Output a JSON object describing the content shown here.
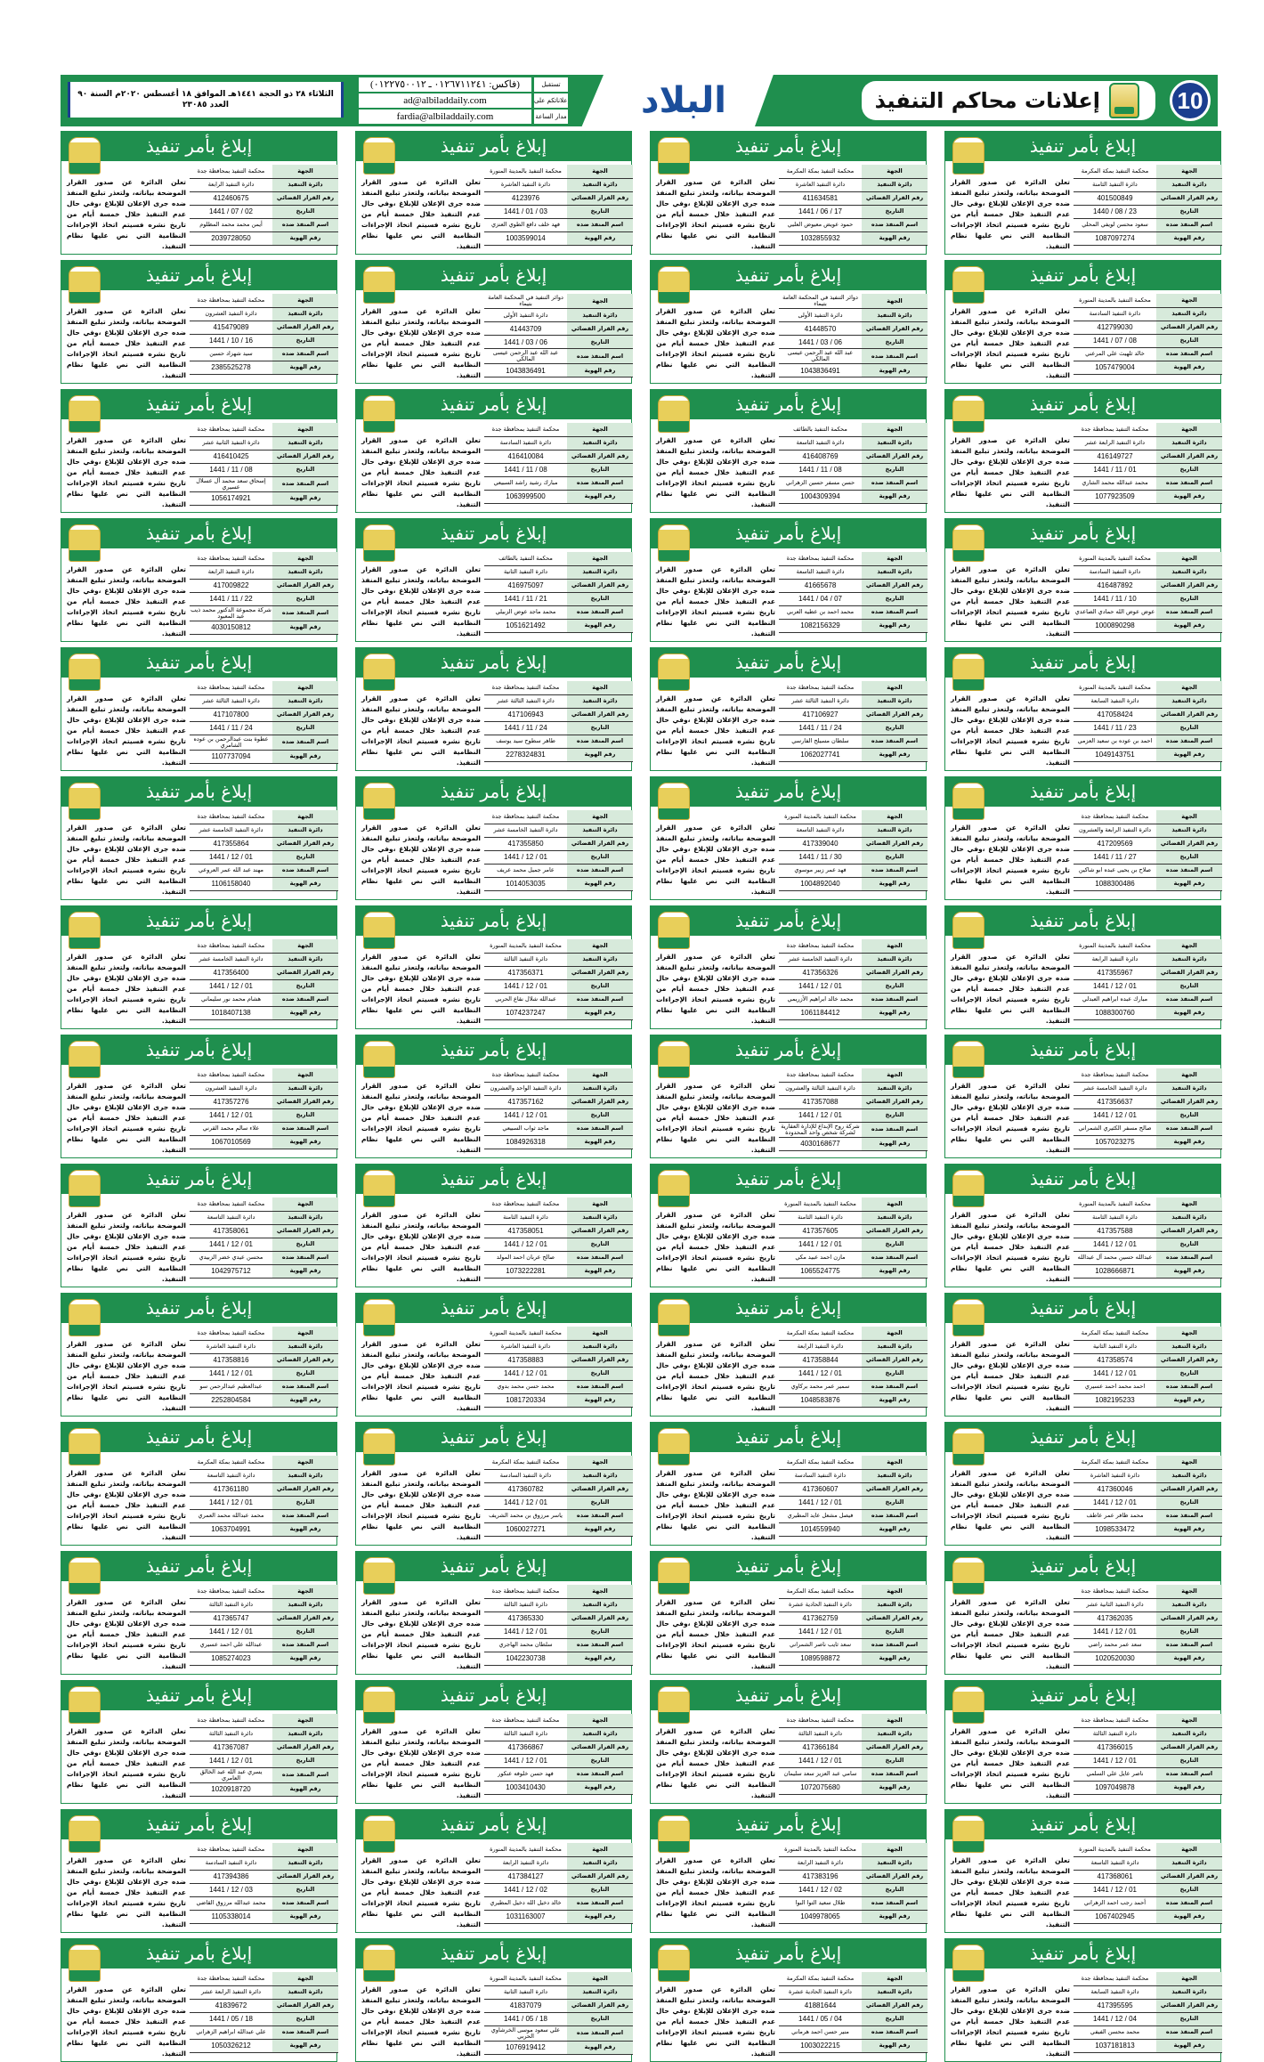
{
  "header": {
    "page_number": "10",
    "section_title": "إعلانات محاكم التنفيذ",
    "logo_text": "البلاد",
    "contact": [
      {
        "label": "تستقبل",
        "value": "(فاكس: ٠١٢٦٧١١٢٤١ ـ ٠١٢٢٧٥٠٠١٢)"
      },
      {
        "label": "إعلاناتكم على",
        "value": "ad@albiladdaily.com"
      },
      {
        "label": "مدار الساعة",
        "value": "fardia@albiladdaily.com"
      }
    ],
    "dateline": "الثلاثاء ٢٨ ذو الحجة ١٤٤١هـ الموافق ١٨ أغسطس ٢٠٢٠م السنة ٩٠ العدد ٢٣٠٨٥"
  },
  "colors": {
    "green": "#1f8f4e",
    "label_bg": "#d7eadb",
    "blue": "#1b3e8f"
  },
  "notice_title": "إبلاغ بأمر تنفيذ",
  "notice_body": "تعلن الدائرة عن صدور القرار الموضحة بياناته، ولتعذر تبليغ المنفذ ضده جرى الإعلان للإبلاغ ،وفي حال عدم التنفيذ خلال خمسة أيام من تاريخ نشره فسيتم اتخاذ الإجراءات النظامية التي نص عليها نظام التنفيذ.",
  "labels": [
    "الجهة",
    "دائرة التنفيذ",
    "رقم القرار القضائي",
    "التاريخ",
    "اسم المنفذ ضده",
    "رقم الهوية"
  ],
  "notices": [
    [
      "محكمة التنفيذ بمكة المكرمة",
      "دائرة التنفيذ الثامنة",
      "401500849",
      "23 / 08 / 1440",
      "سعود محسن لويفي المحلي",
      "1087097274"
    ],
    [
      "محكمة التنفيذ بمكة المكرمة",
      "دائرة التنفيذ العاشرة",
      "411634581",
      "17 / 06 / 1441",
      "حمود عويض معيوض العليي",
      "1032855932"
    ],
    [
      "محكمة التنفيذ بالمدينة المنورة",
      "دائرة التنفيذ العاشرة",
      "4123976",
      "03 / 01 / 1441",
      "فهد خلف دافع الطوي العنزي",
      "1003599014"
    ],
    [
      "محكمة التنفيذ بمحافظة جدة",
      "دائرة التنفيذ الرابعة",
      "412460675",
      "02 / 07 / 1441",
      "أيمن محمد محمد المظلوم",
      "2039728050"
    ],
    [
      "محكمة التنفيذ بالمدينة المنورة",
      "دائرة التنفيذ السادسة",
      "412799030",
      "08 / 07 / 1441",
      "خالد ثلهيث علي المرعني",
      "1057479004"
    ],
    [
      "دوائر التنفيذ في المحكمة العامة بتيماء",
      "دائرة التنفيذ الأولى",
      "41448570",
      "06 / 03 / 1441",
      "عبد الله عبد الرحمن عيسى المالكي",
      "1043836491"
    ],
    [
      "دوائر التنفيذ في المحكمة العامة بتيماء",
      "دائرة التنفيذ الأولى",
      "41443709",
      "06 / 03 / 1441",
      "عبد الله عبد الرحمن عيسى المالكي",
      "1043836491"
    ],
    [
      "محكمة التنفيذ بمحافظة جدة",
      "دائرة التنفيذ العشرون",
      "415479089",
      "16 / 10 / 1441",
      "سيد شهزاد حسين",
      "2385525278"
    ],
    [
      "محكمة التنفيذ بمحافظة جدة",
      "دائرة التنفيذ الرابعة عشر",
      "416149727",
      "01 / 11 / 1441",
      "محمد عبدالله محمد الشاري",
      "1077923509"
    ],
    [
      "محكمة التنفيذ بالطائف",
      "دائرة التنفيذ التاسعة",
      "416408769",
      "08 / 11 / 1441",
      "حسن مسفر حسين الزهراني",
      "1004309394"
    ],
    [
      "محكمة التنفيذ بمحافظة جدة",
      "دائرة التنفيذ السادسة",
      "416410084",
      "08 / 11 / 1441",
      "مبارك رشيد راشد السبيعي",
      "1063999500"
    ],
    [
      "محكمة التنفيذ بمحافظة جدة",
      "دائرة التنفيذ الثانية عشر",
      "416410425",
      "08 / 11 / 1441",
      "إسحاق سعد محمد آل عسلال عسيري",
      "1056174921"
    ],
    [
      "محكمة التنفيذ بالمدينة المنورة",
      "دائرة التنفيذ السادسة",
      "416487892",
      "10 / 11 / 1441",
      "عوض عوض الله حمادي الصاعدي",
      "1000890298"
    ],
    [
      "محكمة التنفيذ بمحافظة جدة",
      "دائرة التنفيذ التاسعة",
      "41665678",
      "07 / 04 / 1441",
      "محمد احمد بن عطيه العربي",
      "1082156329"
    ],
    [
      "محكمة التنفيذ بالطائف",
      "دائرة التنفيذ الثانية",
      "416975097",
      "21 / 11 / 1441",
      "محمد ماجد عوض الزبيلي",
      "1051621492"
    ],
    [
      "محكمة التنفيذ بمحافظة جدة",
      "دائرة التنفيذ الرابعة",
      "417009822",
      "22 / 11 / 1441",
      "شركة مجموعة الدكتور محمد ذيب عبد المعبود",
      "4030150812"
    ],
    [
      "محكمة التنفيذ بالمدينة المنورة",
      "دائرة التنفيذ السابعة",
      "417058424",
      "23 / 11 / 1441",
      "احمد بن عوده بن سعيد العزمي",
      "1049143751"
    ],
    [
      "محكمة التنفيذ بمحافظة جدة",
      "دائرة التنفيذ الثالثة عشر",
      "417106927",
      "24 / 11 / 1441",
      "سلطان مسيلح الفارسي",
      "1062027741"
    ],
    [
      "محكمة التنفيذ بمحافظة جدة",
      "دائرة التنفيذ الثالثة عشر",
      "417106943",
      "24 / 11 / 1441",
      "طاهر سطوح سيد يوسف",
      "2278324831"
    ],
    [
      "محكمة التنفيذ بمحافظة جدة",
      "دائرة التنفيذ الثالثة عشر",
      "417107800",
      "24 / 11 / 1441",
      "عطوة بنت عبدالرحمن بن عوده الشامري",
      "1107737094"
    ],
    [
      "محكمة التنفيذ بمحافظة جدة",
      "دائرة التنفيذ الرابعة والعشرون",
      "417209569",
      "27 / 11 / 1441",
      "صلاح بن يحيى عبده ابو شاكين",
      "1088300486"
    ],
    [
      "محكمة التنفيذ بالمدينة المنورة",
      "دائرة التنفيذ التاسعة",
      "417339040",
      "30 / 11 / 1441",
      "فهد عمر زبير موسوي",
      "1004892040"
    ],
    [
      "محكمة التنفيذ بمحافظة جدة",
      "دائرة التنفيذ الخامسة عشر",
      "417355850",
      "01 / 12 / 1441",
      "عامر جميل محمد عريف",
      "1014053035"
    ],
    [
      "محكمة التنفيذ بمحافظة جدة",
      "دائرة التنفيذ الخامسة عشر",
      "417355864",
      "01 / 12 / 1441",
      "مهند عبد الله عمر العروعي",
      "1106158040"
    ],
    [
      "محكمة التنفيذ بالمدينة المنورة",
      "دائرة التنفيذ الرابعة",
      "417355967",
      "01 / 12 / 1441",
      "مبارك عبده ابراهيم العبدلي",
      "1088300760"
    ],
    [
      "محكمة التنفيذ بمحافظة جدة",
      "دائرة التنفيذ الخامسة عشر",
      "417356326",
      "01 / 12 / 1441",
      "محمد خالد ابراهيم الأزريمي",
      "1061184412"
    ],
    [
      "محكمة التنفيذ بالمدينة المنورة",
      "دائرة التنفيذ الثالثة",
      "417356371",
      "01 / 12 / 1441",
      "عبدالله شلال نقاع الحربي",
      "1074237247"
    ],
    [
      "محكمة التنفيذ بمحافظة جدة",
      "دائرة التنفيذ الخامسة عشر",
      "417356400",
      "01 / 12 / 1441",
      "هشام محمد نور سليماني",
      "1018407138"
    ],
    [
      "محكمة التنفيذ بمحافظة جدة",
      "دائرة التنفيذ الخامسة عشر",
      "417356637",
      "01 / 12 / 1441",
      "صالح مسفر الكثيري الشمراني",
      "1057023275"
    ],
    [
      "محكمة التنفيذ بمحافظة جدة",
      "دائرة التنفيذ الثالثة والعشرون",
      "417357088",
      "01 / 12 / 1441",
      "شركة روح الإبداع للإدارة العقارية لشركة شخص واحد المحدودة",
      "4030168677"
    ],
    [
      "محكمة التنفيذ بمحافظة جدة",
      "دائرة التنفيذ الواحد والعشرون",
      "417357162",
      "01 / 12 / 1441",
      "ماجد ثواب السبيعي",
      "1084926318"
    ],
    [
      "محكمة التنفيذ بمحافظة جدة",
      "دائرة التنفيذ العشرون",
      "417357276",
      "01 / 12 / 1441",
      "علاء سالم محمد القرني",
      "1067010569"
    ],
    [
      "محكمة التنفيذ بالمدينة المنورة",
      "دائرة التنفيذ الثامنة",
      "417357588",
      "01 / 12 / 1441",
      "عبدالله حسين محمد آل عبدالله",
      "1028666871"
    ],
    [
      "محكمة التنفيذ بالمدينة المنورة",
      "دائرة التنفيذ الثامنة",
      "417357605",
      "01 / 12 / 1441",
      "مازن احمد عبيد مكي",
      "1065524775"
    ],
    [
      "محكمة التنفيذ بمحافظة جدة",
      "دائرة التنفيذ الثامنة",
      "417358051",
      "01 / 12 / 1441",
      "صالح عربان احمد المولد",
      "1073222281"
    ],
    [
      "محكمة التنفيذ بمحافظة جدة",
      "دائرة التنفيذ التاسعة",
      "417358061",
      "01 / 12 / 1441",
      "محسن عيدي خضر الزبيدي",
      "1042975712"
    ],
    [
      "محكمة التنفيذ بمكة المكرمة",
      "دائرة التنفيذ الثانية",
      "417358574",
      "01 / 12 / 1441",
      "احمد محمد احمد عسيري",
      "1082195233"
    ],
    [
      "محكمة التنفيذ بمكة المكرمة",
      "دائرة التنفيذ الرابعة",
      "417358844",
      "01 / 12 / 1441",
      "سمير عمر محمد بركاوي",
      "1048583876"
    ],
    [
      "محكمة التنفيذ بالمدينة المنورة",
      "دائرة التنفيذ العاشرة",
      "417358883",
      "01 / 12 / 1441",
      "محمد حسن محمد بدوي",
      "1081720334"
    ],
    [
      "محكمة التنفيذ بمحافظة جدة",
      "دائرة التنفيذ العاشرة",
      "417358816",
      "01 / 12 / 1441",
      "عبدالعظيم عبدالرحمن سو",
      "2252804584"
    ],
    [
      "محكمة التنفيذ بمكة المكرمة",
      "دائرة التنفيذ العاشرة",
      "417360046",
      "01 / 12 / 1441",
      "محمد ظافر عمر عاطف",
      "1098533472"
    ],
    [
      "محكمة التنفيذ بمكة المكرمة",
      "دائرة التنفيذ السادسة",
      "417360607",
      "01 / 12 / 1441",
      "فيصل مشعل عايد المطيري",
      "1014559940"
    ],
    [
      "محكمة التنفيذ بمكة المكرمة",
      "دائرة التنفيذ السادسة",
      "417360782",
      "01 / 12 / 1441",
      "ياسر مرزوق بن محمد الشريف",
      "1060027271"
    ],
    [
      "محكمة التنفيذ بمكة المكرمة",
      "دائرة التنفيذ التاسعة",
      "417361180",
      "01 / 12 / 1441",
      "محمد عبدالله محمد العمري",
      "1063704991"
    ],
    [
      "محكمة التنفيذ بمحافظة جدة",
      "دائرة التنفيذ الثانية عشر",
      "417362035",
      "01 / 12 / 1441",
      "سعد عمر محمد راضي",
      "1020520030"
    ],
    [
      "محكمة التنفيذ بمكة المكرمة",
      "دائرة التنفيذ الحادية عشرة",
      "417362759",
      "01 / 12 / 1441",
      "سعد ثايب ناصر الشمراني",
      "1089598872"
    ],
    [
      "محكمة التنفيذ بمحافظة جدة",
      "دائرة التنفيذ الثالثة",
      "417365330",
      "01 / 12 / 1441",
      "سلطان محمد الهاجري",
      "1042230738"
    ],
    [
      "محكمة التنفيذ بمحافظة جدة",
      "دائرة التنفيذ الثالثة",
      "417365747",
      "01 / 12 / 1441",
      "عبدالله علي احمد عسيري",
      "1085274023"
    ],
    [
      "محكمة التنفيذ بمحافظة جدة",
      "دائرة التنفيذ الثالثة",
      "417366015",
      "01 / 12 / 1441",
      "ناصر عايل علي السلمي",
      "1097049878"
    ],
    [
      "محكمة التنفيذ بمحافظة جدة",
      "دائرة التنفيذ الثالثة",
      "417366184",
      "01 / 12 / 1441",
      "سامي عبد العزيز سعد سليمان",
      "1072075680"
    ],
    [
      "محكمة التنفيذ بمحافظة جدة",
      "دائرة التنفيذ الثالثة",
      "417366867",
      "01 / 12 / 1441",
      "فهد حسن خلوفه عنكور",
      "1003410430"
    ],
    [
      "محكمة التنفيذ بمحافظة جدة",
      "دائرة التنفيذ الثالثة",
      "417367087",
      "01 / 12 / 1441",
      "يسري عبد الله عبد الخالق العامري",
      "1020918720"
    ],
    [
      "محكمة التنفيذ بالمدينة المنورة",
      "دائرة التنفيذ التاسعة",
      "417368061",
      "01 / 12 / 1441",
      "أحمد رجب احمد الزهراني",
      "1067402945"
    ],
    [
      "محكمة التنفيذ بالمدينة المنورة",
      "دائرة التنفيذ الرابعة",
      "417383196",
      "02 / 12 / 1441",
      "طلال سعيد التوا البوا",
      "1049978065"
    ],
    [
      "محكمة التنفيذ بالمدينة المنورة",
      "دائرة التنفيذ الرابعة",
      "417384127",
      "02 / 12 / 1441",
      "خالد دخيل الله دخيل المطيري",
      "1031163007"
    ],
    [
      "محكمة التنفيذ بمحافظة جدة",
      "دائرة التنفيذ السادسة",
      "417394386",
      "03 / 12 / 1441",
      "محمد عبدالله مرزوق القاضي",
      "1105338014"
    ],
    [
      "محكمة التنفيذ بمحافظة جدة",
      "دائرة التنفيذ السابعة",
      "417395595",
      "04 / 12 / 1441",
      "محمد محسن الفيفي",
      "1037181813"
    ],
    [
      "محكمة التنفيذ بمكة المكرمة",
      "دائرة التنفيذ الحادية عشرة",
      "41881644",
      "04 / 05 / 1441",
      "منير حسن احمد هرماني",
      "1003022215"
    ],
    [
      "محكمة التنفيذ بالمدينة المنورة",
      "دائرة التنفيذ الثانية",
      "41837079",
      "18 / 05 / 1441",
      "علي سعود موسى الخرشاوي الحربي",
      "1076919412"
    ],
    [
      "محكمة التنفيذ بمحافظة جدة",
      "دائرة التنفيذ الرابعة عشر",
      "41839672",
      "18 / 05 / 1441",
      "علي عبدالله ابراهيم الزهراني",
      "1050326212"
    ]
  ]
}
